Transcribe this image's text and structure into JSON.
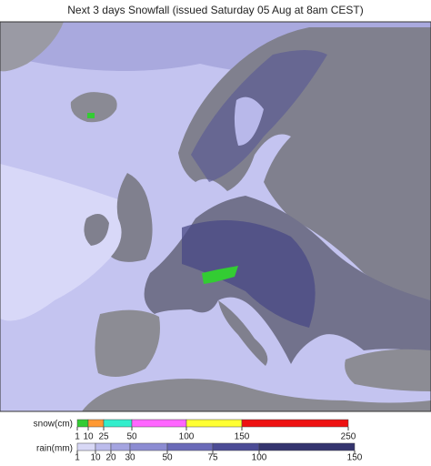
{
  "title": "Next 3 days Snowfall (issued Saturday 05 Aug at 8am CEST)",
  "legend": {
    "snow": {
      "label": "snow(cm)",
      "ticks": [
        1,
        10,
        25,
        50,
        100,
        150,
        250
      ],
      "colors": [
        "#33cc33",
        "#ff9933",
        "#33eecc",
        "#ff66ff",
        "#ffff33",
        "#ee1111"
      ]
    },
    "rain": {
      "label": "rain(mm)",
      "ticks": [
        1,
        10,
        20,
        30,
        50,
        75,
        100,
        150
      ],
      "colors": [
        "#d8d8f6",
        "#bcbcec",
        "#a4a4e0",
        "#8c8cd2",
        "#6a6ab8",
        "#4c4c96",
        "#34346e"
      ]
    }
  }
}
